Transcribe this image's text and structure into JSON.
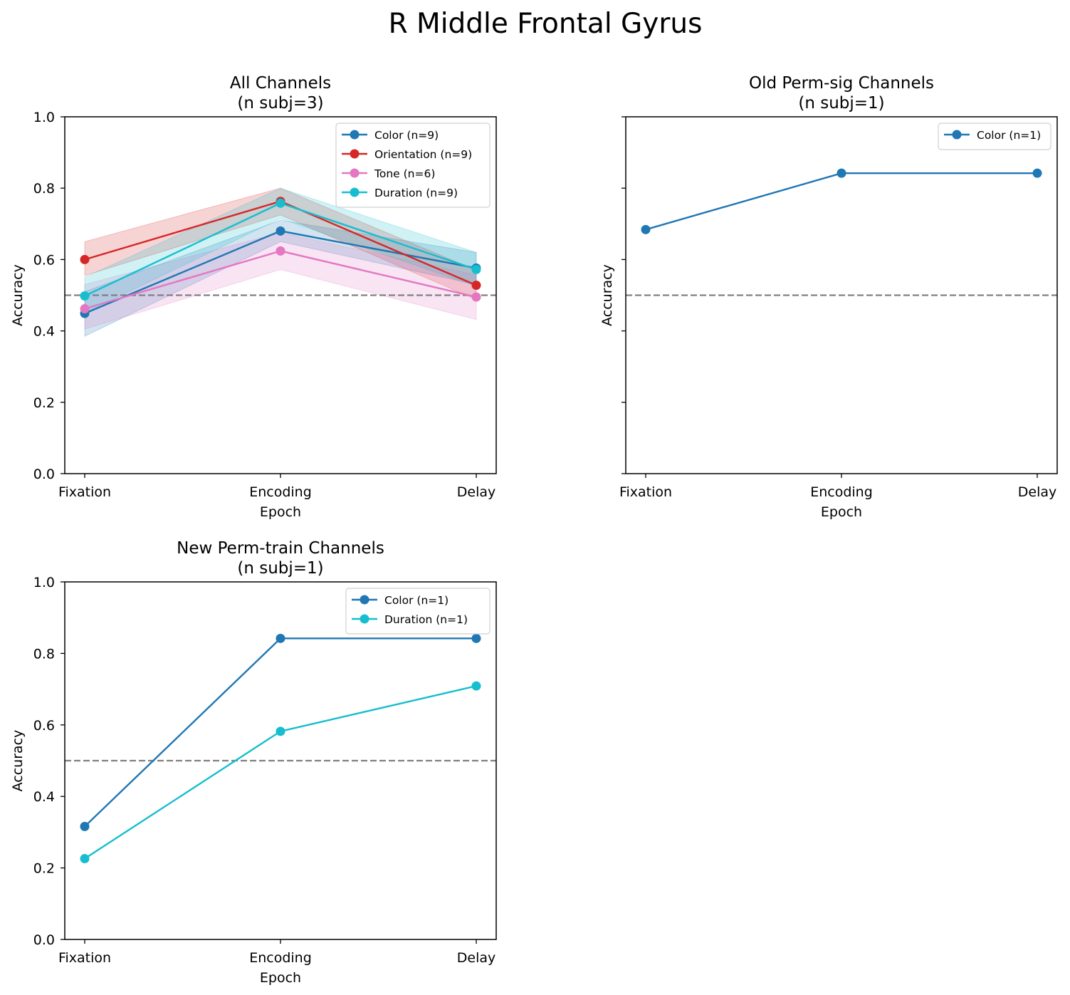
{
  "figure": {
    "title": "R Middle Frontal Gyrus"
  },
  "chart_data": [
    {
      "type": "line",
      "title": [
        "All Channels",
        "(n subj=3)"
      ],
      "xlabel": "Epoch",
      "ylabel": "Accuracy",
      "categories": [
        "Fixation",
        "Encoding",
        "Delay"
      ],
      "ylim": [
        0,
        1
      ],
      "yticks": [
        "0.0",
        "0.2",
        "0.4",
        "0.6",
        "0.8",
        "1.0"
      ],
      "show_ytick_labels": true,
      "chance_line": 0.5,
      "legend_position": "top-right",
      "series": [
        {
          "name": "Color (n=9)",
          "color": "#1f77b4",
          "values": [
            0.449,
            0.68,
            0.576
          ],
          "lower": [
            0.385,
            0.65,
            0.53
          ],
          "upper": [
            0.51,
            0.71,
            0.62
          ]
        },
        {
          "name": "Orientation (n=9)",
          "color": "#d62728",
          "values": [
            0.6,
            0.763,
            0.528
          ],
          "lower": [
            0.555,
            0.725,
            0.488
          ],
          "upper": [
            0.65,
            0.8,
            0.57
          ]
        },
        {
          "name": "Tone (n=6)",
          "color": "#e377c2",
          "values": [
            0.462,
            0.624,
            0.495
          ],
          "lower": [
            0.405,
            0.572,
            0.432
          ],
          "upper": [
            0.53,
            0.675,
            0.557
          ]
        },
        {
          "name": "Duration (n=9)",
          "color": "#17becf",
          "values": [
            0.498,
            0.758,
            0.572
          ],
          "lower": [
            0.45,
            0.715,
            0.525
          ],
          "upper": [
            0.55,
            0.8,
            0.62
          ]
        }
      ]
    },
    {
      "type": "line",
      "title": [
        "Old Perm-sig Channels",
        "(n subj=1)"
      ],
      "xlabel": "Epoch",
      "ylabel": "Accuracy",
      "categories": [
        "Fixation",
        "Encoding",
        "Delay"
      ],
      "ylim": [
        0,
        1
      ],
      "yticks": [
        "0.0",
        "0.2",
        "0.4",
        "0.6",
        "0.8",
        "1.0"
      ],
      "show_ytick_labels": false,
      "chance_line": 0.5,
      "legend_position": "top-right",
      "series": [
        {
          "name": "Color (n=1)",
          "color": "#1f77b4",
          "values": [
            0.684,
            0.842,
            0.842
          ]
        }
      ]
    },
    {
      "type": "line",
      "title": [
        "New Perm-train Channels",
        "(n subj=1)"
      ],
      "xlabel": "Epoch",
      "ylabel": "Accuracy",
      "categories": [
        "Fixation",
        "Encoding",
        "Delay"
      ],
      "ylim": [
        0,
        1
      ],
      "yticks": [
        "0.0",
        "0.2",
        "0.4",
        "0.6",
        "0.8",
        "1.0"
      ],
      "show_ytick_labels": true,
      "chance_line": 0.5,
      "legend_position": "top-right",
      "series": [
        {
          "name": "Color (n=1)",
          "color": "#1f77b4",
          "values": [
            0.316,
            0.842,
            0.842
          ]
        },
        {
          "name": "Duration (n=1)",
          "color": "#17becf",
          "values": [
            0.226,
            0.582,
            0.709
          ]
        }
      ]
    }
  ]
}
